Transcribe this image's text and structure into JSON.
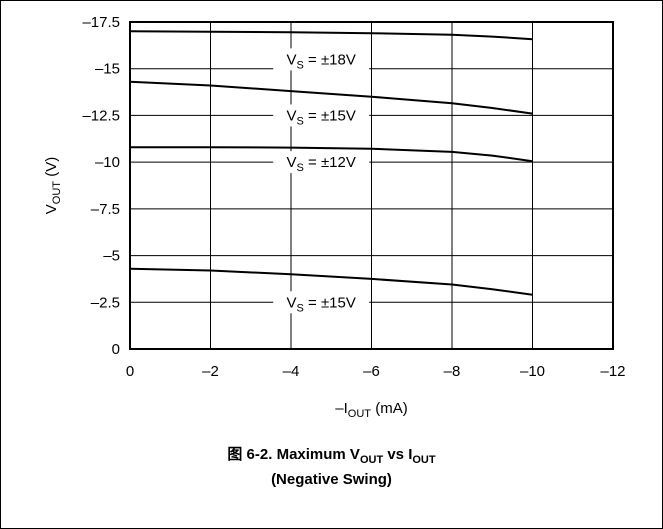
{
  "chart_data": {
    "type": "line",
    "xlabel_prefix": "–I",
    "xlabel_sub": "OUT",
    "xlabel_suffix": " (mA)",
    "ylabel_main": "V",
    "ylabel_sub": "OUT",
    "ylabel_suffix": " (V)",
    "xlim": [
      0,
      -12
    ],
    "ylim": [
      0,
      -17.5
    ],
    "x_ticks": [
      0,
      -2,
      -4,
      -6,
      -8,
      -10,
      -12
    ],
    "x_tick_labels": [
      "0",
      "–2",
      "–4",
      "–6",
      "–8",
      "–10",
      "–12"
    ],
    "y_ticks": [
      0,
      -2.5,
      -5,
      -7.5,
      -10,
      -12.5,
      -15,
      -17.5
    ],
    "y_tick_labels": [
      "0",
      "–2.5",
      "–5",
      "–7.5",
      "–10",
      "–12.5",
      "–15",
      "–17.5"
    ],
    "grid": true,
    "series": [
      {
        "name": "V_S = ±18V",
        "label_main": "V",
        "label_sub": "S",
        "label_rest": " = ±18V",
        "label_x": -4.75,
        "label_y": -15.5,
        "x": [
          0,
          -2,
          -4,
          -6,
          -8,
          -9,
          -10
        ],
        "y": [
          -17.0,
          -16.98,
          -16.95,
          -16.9,
          -16.82,
          -16.72,
          -16.58
        ]
      },
      {
        "name": "V_S = ±15V",
        "label_main": "V",
        "label_sub": "S",
        "label_rest": " = ±15V",
        "label_x": -4.75,
        "label_y": -12.5,
        "x": [
          0,
          -2,
          -4,
          -6,
          -8,
          -9,
          -10
        ],
        "y": [
          -14.3,
          -14.1,
          -13.8,
          -13.5,
          -13.15,
          -12.9,
          -12.6
        ]
      },
      {
        "name": "V_S = ±12V",
        "label_main": "V",
        "label_sub": "S",
        "label_rest": " = ±12V",
        "label_x": -4.75,
        "label_y": -10.0,
        "x": [
          0,
          -2,
          -4,
          -6,
          -8,
          -9,
          -10
        ],
        "y": [
          -10.8,
          -10.8,
          -10.78,
          -10.72,
          -10.55,
          -10.35,
          -10.05
        ]
      },
      {
        "name": "V_S = ±15V",
        "label_main": "V",
        "label_sub": "S",
        "label_rest": " = ±15V",
        "label_x": -4.75,
        "label_y": -2.5,
        "x": [
          0,
          -2,
          -4,
          -6,
          -8,
          -9,
          -10
        ],
        "y": [
          -4.3,
          -4.2,
          -4.0,
          -3.75,
          -3.45,
          -3.2,
          -2.9
        ]
      }
    ]
  },
  "caption": {
    "prefix": "图 6-2. Maximum V",
    "sub1": "OUT",
    "mid": " vs I",
    "sub2": "OUT",
    "line2": "(Negative Swing)"
  }
}
